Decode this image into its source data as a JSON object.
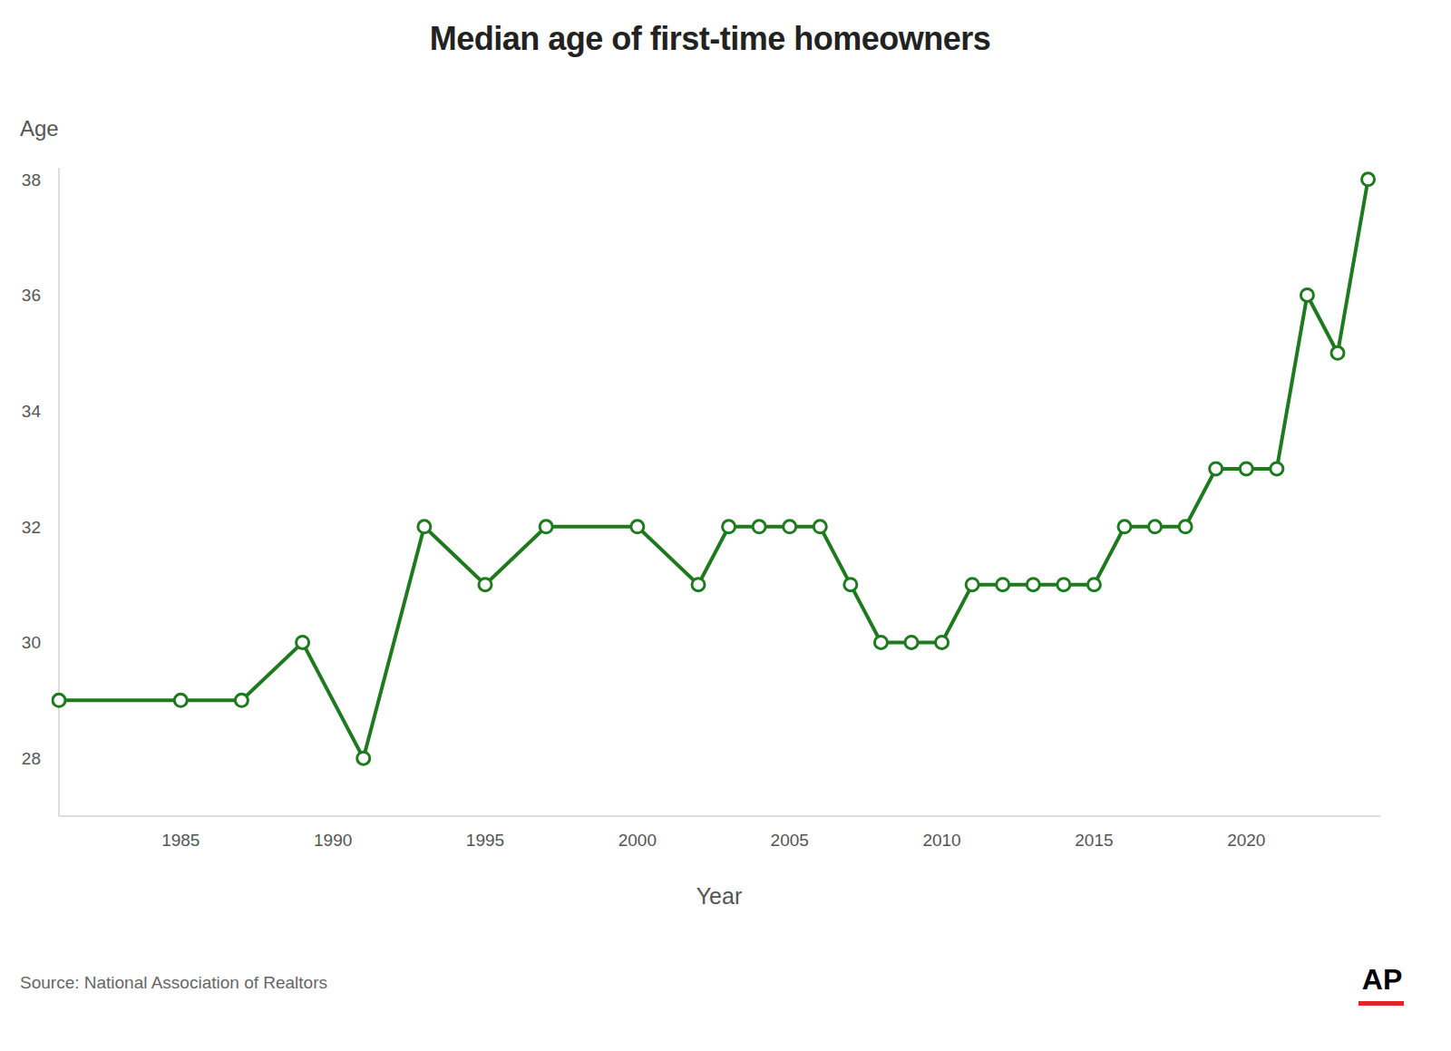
{
  "chart_data": {
    "type": "line",
    "title": "Median age of first-time homeowners",
    "x_label": "Year",
    "y_label": "Age",
    "x": [
      1981,
      1985,
      1987,
      1989,
      1991,
      1993,
      1995,
      1997,
      2000,
      2002,
      2003,
      2004,
      2005,
      2006,
      2007,
      2008,
      2009,
      2010,
      2011,
      2012,
      2013,
      2014,
      2015,
      2016,
      2017,
      2018,
      2019,
      2020,
      2021,
      2022,
      2023,
      2024
    ],
    "values": [
      29,
      29,
      29,
      30,
      28,
      32,
      31,
      32,
      32,
      31,
      32,
      32,
      32,
      32,
      31,
      30,
      30,
      30,
      31,
      31,
      31,
      31,
      31,
      32,
      32,
      32,
      33,
      33,
      33,
      36,
      35,
      38
    ],
    "color": "#1f7a1f",
    "marker": "circle",
    "xlim": [
      1981,
      2024.4
    ],
    "ylim": [
      27,
      38.2
    ],
    "xticks": [
      1985,
      1990,
      1995,
      2000,
      2005,
      2010,
      2015,
      2020
    ],
    "yticks": [
      28,
      30,
      32,
      34,
      36,
      38
    ],
    "grid": false,
    "source": "Source: National Association of Realtors",
    "logo": "AP"
  }
}
